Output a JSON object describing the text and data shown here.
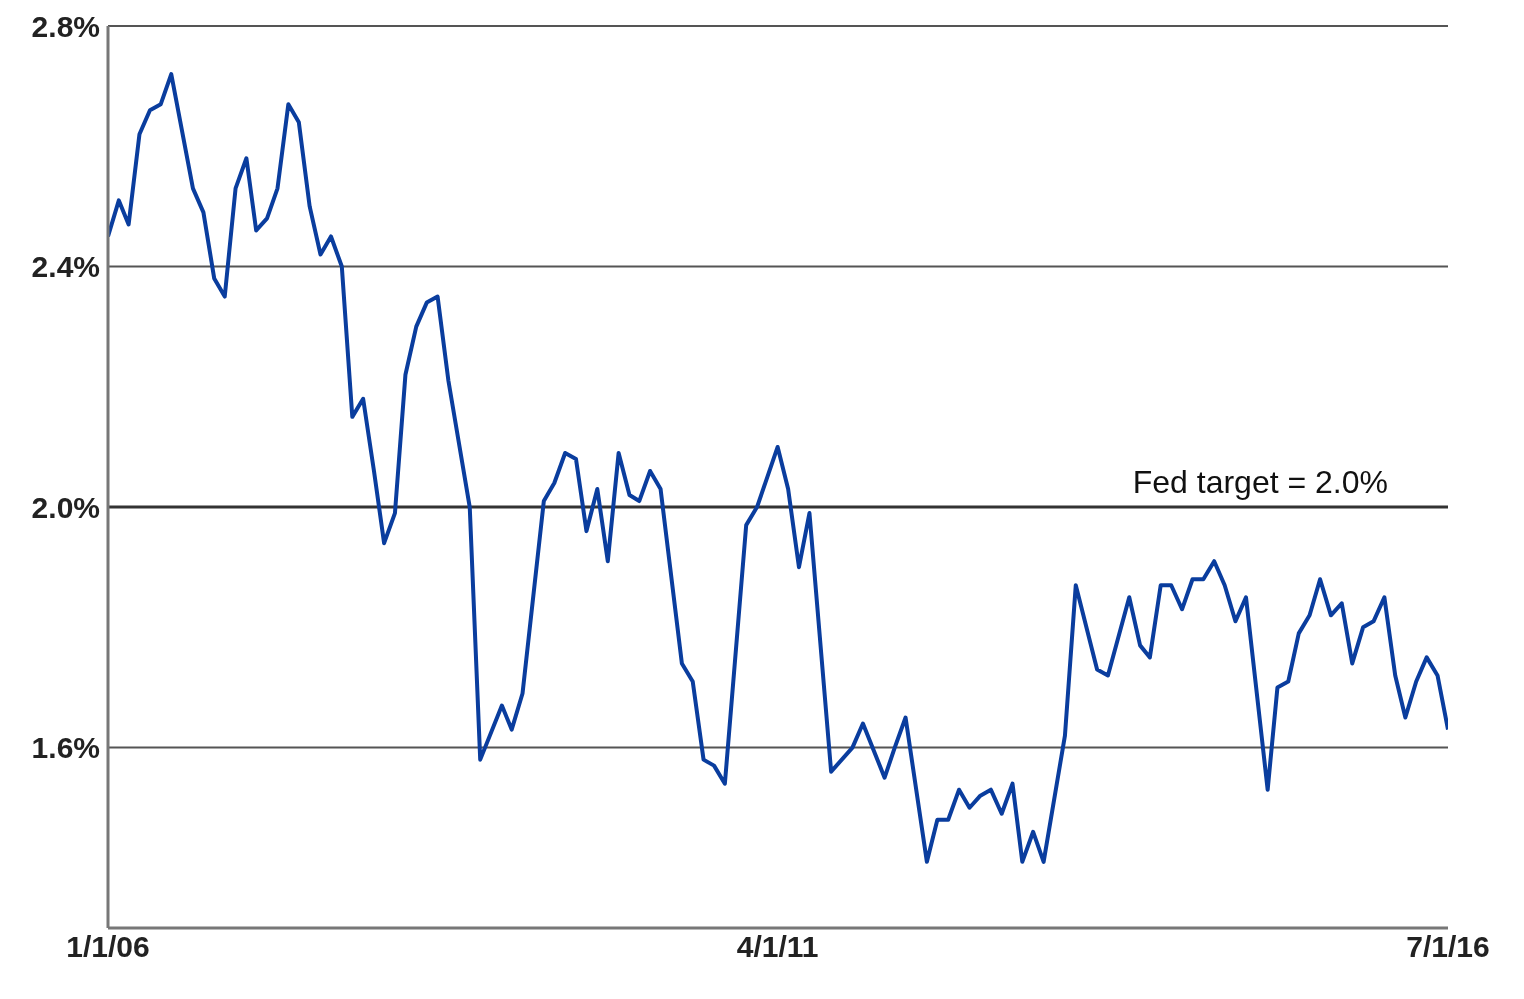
{
  "chart_data": {
    "type": "line",
    "x": [
      "2006-01",
      "2006-02",
      "2006-03",
      "2006-04",
      "2006-05",
      "2006-06",
      "2006-07",
      "2006-09",
      "2006-10",
      "2006-11",
      "2006-12",
      "2007-01",
      "2007-02",
      "2007-03",
      "2007-04",
      "2007-05",
      "2007-06",
      "2007-07",
      "2007-08",
      "2007-09",
      "2007-10",
      "2007-11",
      "2007-12",
      "2008-01",
      "2008-02",
      "2008-03",
      "2008-04",
      "2008-05",
      "2008-06",
      "2008-07",
      "2008-08",
      "2008-09",
      "2008-11",
      "2008-12",
      "2009-02",
      "2009-03",
      "2009-04",
      "2009-06",
      "2009-07",
      "2009-08",
      "2009-09",
      "2009-10",
      "2009-11",
      "2009-12",
      "2010-01",
      "2010-02",
      "2010-03",
      "2010-04",
      "2010-05",
      "2010-07",
      "2010-08",
      "2010-09",
      "2010-10",
      "2010-11",
      "2011-01",
      "2011-02",
      "2011-04",
      "2011-05",
      "2011-06",
      "2011-07",
      "2011-09",
      "2011-11",
      "2011-12",
      "2012-02",
      "2012-03",
      "2012-04",
      "2012-06",
      "2012-07",
      "2012-08",
      "2012-09",
      "2012-10",
      "2012-11",
      "2012-12",
      "2013-01",
      "2013-02",
      "2013-03",
      "2013-04",
      "2013-05",
      "2013-07",
      "2013-08",
      "2013-10",
      "2013-11",
      "2014-01",
      "2014-02",
      "2014-03",
      "2014-04",
      "2014-05",
      "2014-06",
      "2014-07",
      "2014-08",
      "2014-09",
      "2014-10",
      "2014-11",
      "2014-12",
      "2015-02",
      "2015-03",
      "2015-04",
      "2015-05",
      "2015-06",
      "2015-07",
      "2015-08",
      "2015-09",
      "2015-10",
      "2015-11",
      "2015-12",
      "2016-01",
      "2016-02",
      "2016-03",
      "2016-04",
      "2016-05",
      "2016-06",
      "2016-07"
    ],
    "series": [
      {
        "color": "#0a3d9e",
        "values": [
          2.45,
          2.51,
          2.47,
          2.62,
          2.66,
          2.67,
          2.72,
          2.53,
          2.49,
          2.38,
          2.35,
          2.53,
          2.58,
          2.46,
          2.48,
          2.53,
          2.67,
          2.64,
          2.5,
          2.42,
          2.45,
          2.4,
          2.15,
          2.18,
          2.06,
          1.94,
          1.99,
          2.22,
          2.3,
          2.34,
          2.35,
          2.21,
          2.0,
          1.58,
          1.67,
          1.63,
          1.69,
          2.01,
          2.04,
          2.09,
          2.08,
          1.96,
          2.03,
          1.91,
          2.09,
          2.02,
          2.01,
          2.06,
          2.03,
          1.74,
          1.71,
          1.58,
          1.57,
          1.54,
          1.97,
          2.0,
          2.1,
          2.03,
          1.9,
          1.99,
          1.56,
          1.6,
          1.64,
          1.55,
          1.6,
          1.65,
          1.41,
          1.48,
          1.48,
          1.53,
          1.5,
          1.52,
          1.53,
          1.49,
          1.54,
          1.41,
          1.46,
          1.41,
          1.62,
          1.87,
          1.73,
          1.72,
          1.85,
          1.77,
          1.75,
          1.87,
          1.87,
          1.83,
          1.88,
          1.88,
          1.91,
          1.87,
          1.81,
          1.85,
          1.53,
          1.7,
          1.71,
          1.79,
          1.82,
          1.88,
          1.82,
          1.84,
          1.74,
          1.8,
          1.81,
          1.85,
          1.72,
          1.65,
          1.71,
          1.75,
          1.72,
          1.63
        ]
      }
    ],
    "xlim": [
      "2006-01-01",
      "2016-07-01"
    ],
    "xticks": [
      {
        "value": "2006-01-01",
        "label": "1/1/06"
      },
      {
        "value": "2011-04-01",
        "label": "4/1/11"
      },
      {
        "value": "2016-07-01",
        "label": "7/1/16"
      }
    ],
    "ylim": [
      1.3,
      2.8
    ],
    "yticks": [
      {
        "value": 1.6,
        "label": "1.6%"
      },
      {
        "value": 2.0,
        "label": "2.0%"
      },
      {
        "value": 2.4,
        "label": "2.4%"
      },
      {
        "value": 2.8,
        "label": "2.8%"
      }
    ],
    "grid": "y",
    "marker": "none",
    "line_style": "solid",
    "ref_lines": [
      {
        "axis": "y",
        "value": 2.0,
        "label": "Fed target = 2.0%",
        "color": "#333333"
      }
    ]
  }
}
